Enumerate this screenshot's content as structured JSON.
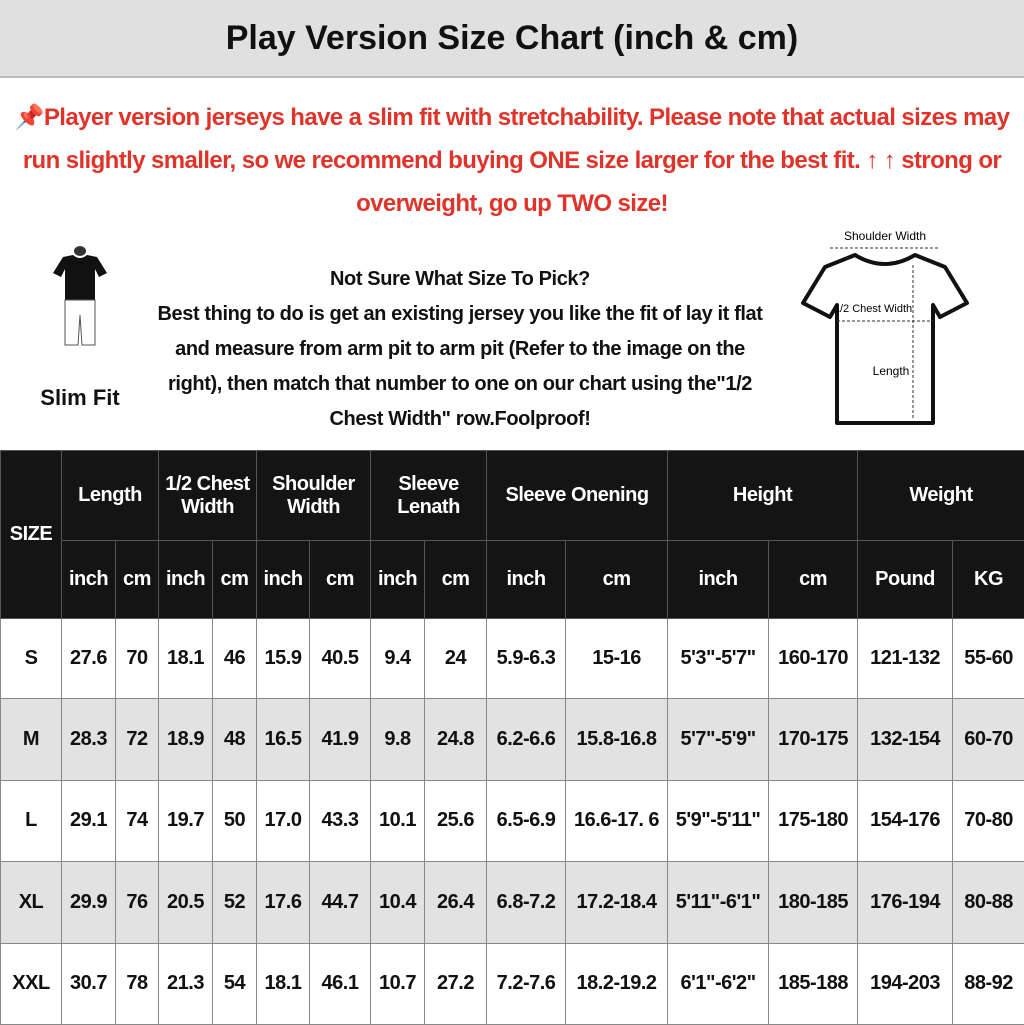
{
  "title": "Play Version Size Chart (inch & cm)",
  "notice": {
    "icon": "pushpin-icon",
    "text": "Player version jerseys have a slim fit with stretchability. Please note that actual sizes may run slightly smaller, so we recommend buying ONE size larger for the best fit. ↑ ↑ strong or overweight, go up TWO size!"
  },
  "slim_fit": {
    "label": "Slim Fit"
  },
  "guide": {
    "heading": "Not Sure What Size To Pick?",
    "body": "Best thing to do is get an existing jersey you like the fit of lay it flat and measure from arm pit to arm pit (Refer to the image on the right), then match that number to one on our chart using the\"1/2 Chest Width\" row.Foolproof!"
  },
  "diagram": {
    "shoulder": "Shoulder Width",
    "chest": "1/2 Chest Width",
    "length": "Length"
  },
  "table": {
    "size_header": "SIZE",
    "groups": [
      "Length",
      "1/2 Chest Width",
      "Shoulder Width",
      "Sleeve Lenath",
      "Sleeve Onening",
      "Height",
      "Weight"
    ],
    "units": [
      "inch",
      "cm",
      "inch",
      "cm",
      "inch",
      "cm",
      "inch",
      "cm",
      "inch",
      "cm",
      "inch",
      "cm",
      "Pound",
      "KG"
    ],
    "rows": [
      [
        "S",
        "27.6",
        "70",
        "18.1",
        "46",
        "15.9",
        "40.5",
        "9.4",
        "24",
        "5.9-6.3",
        "15-16",
        "5'3\"-5'7\"",
        "160-170",
        "121-132",
        "55-60"
      ],
      [
        "M",
        "28.3",
        "72",
        "18.9",
        "48",
        "16.5",
        "41.9",
        "9.8",
        "24.8",
        "6.2-6.6",
        "15.8-16.8",
        "5'7\"-5'9\"",
        "170-175",
        "132-154",
        "60-70"
      ],
      [
        "L",
        "29.1",
        "74",
        "19.7",
        "50",
        "17.0",
        "43.3",
        "10.1",
        "25.6",
        "6.5-6.9",
        "16.6-17. 6",
        "5'9\"-5'11\"",
        "175-180",
        "154-176",
        "70-80"
      ],
      [
        "XL",
        "29.9",
        "76",
        "20.5",
        "52",
        "17.6",
        "44.7",
        "10.4",
        "26.4",
        "6.8-7.2",
        "17.2-18.4",
        "5'11\"-6'1\"",
        "180-185",
        "176-194",
        "80-88"
      ],
      [
        "XXL",
        "30.7",
        "78",
        "21.3",
        "54",
        "18.1",
        "46.1",
        "10.7",
        "27.2",
        "7.2-7.6",
        "18.2-19.2",
        "6'1\"-6'2\"",
        "185-188",
        "194-203",
        "88-92"
      ]
    ]
  },
  "colors": {
    "notice": "#e0332a",
    "header_bg": "#141414",
    "alt_row": "#e2e2e2",
    "title_bg": "#e0e0e0"
  }
}
